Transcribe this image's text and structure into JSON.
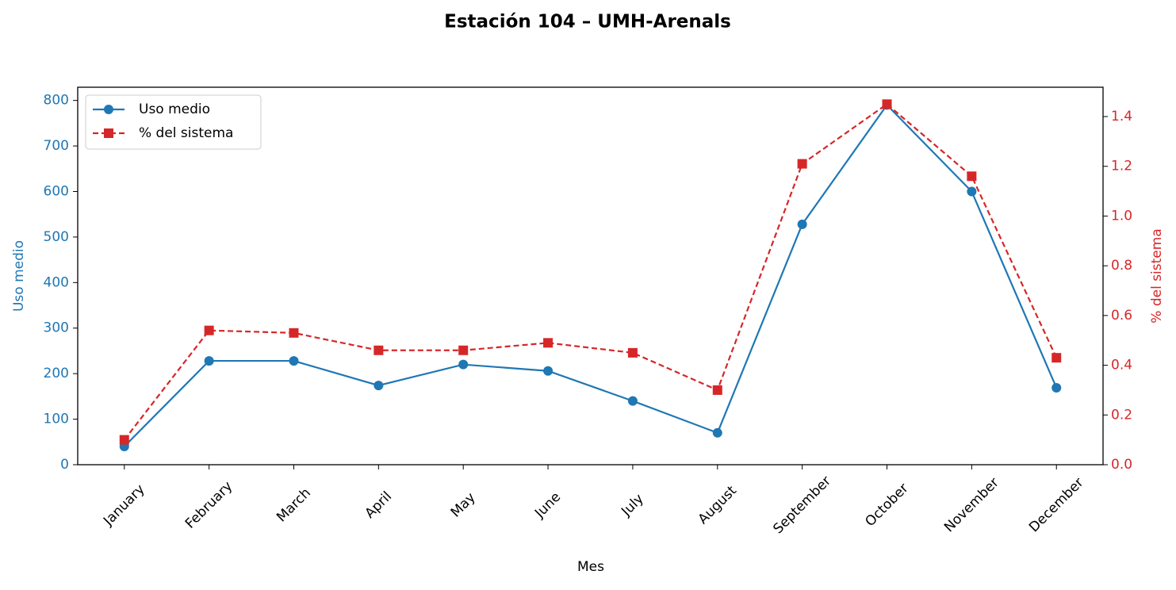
{
  "chart_data": {
    "type": "line",
    "title": "Estación 104 – UMH-Arenals",
    "x_label": "Mes",
    "y_label": "Uso medio",
    "y2_label": "% del sistema",
    "categories": [
      "January",
      "February",
      "March",
      "April",
      "May",
      "June",
      "July",
      "August",
      "September",
      "October",
      "November",
      "December"
    ],
    "series": [
      {
        "name": "Uso medio",
        "color": "#1f77b4",
        "linestyle": "solid",
        "marker": "circle",
        "values": [
          40,
          228,
          228,
          174,
          220,
          206,
          140,
          70,
          528,
          790,
          600,
          169
        ]
      },
      {
        "name": "% del sistema",
        "color": "#d62728",
        "linestyle": "dashed",
        "marker": "square",
        "axis": "y2",
        "values": [
          0.1,
          0.54,
          0.53,
          0.46,
          0.46,
          0.49,
          0.45,
          0.3,
          1.21,
          1.45,
          1.16,
          0.43
        ]
      }
    ],
    "ylim": [
      0,
      829
    ],
    "yticks": [
      0,
      100,
      200,
      300,
      400,
      500,
      600,
      700,
      800
    ],
    "y2lim": [
      0,
      1.518
    ],
    "y2ticks": [
      {
        "value": 0,
        "label": "0.0"
      },
      0.2,
      0.4,
      0.6,
      0.8,
      {
        "value": 1,
        "label": "1.0"
      },
      1.2,
      1.4
    ],
    "grid": false,
    "legend": "upper left"
  }
}
